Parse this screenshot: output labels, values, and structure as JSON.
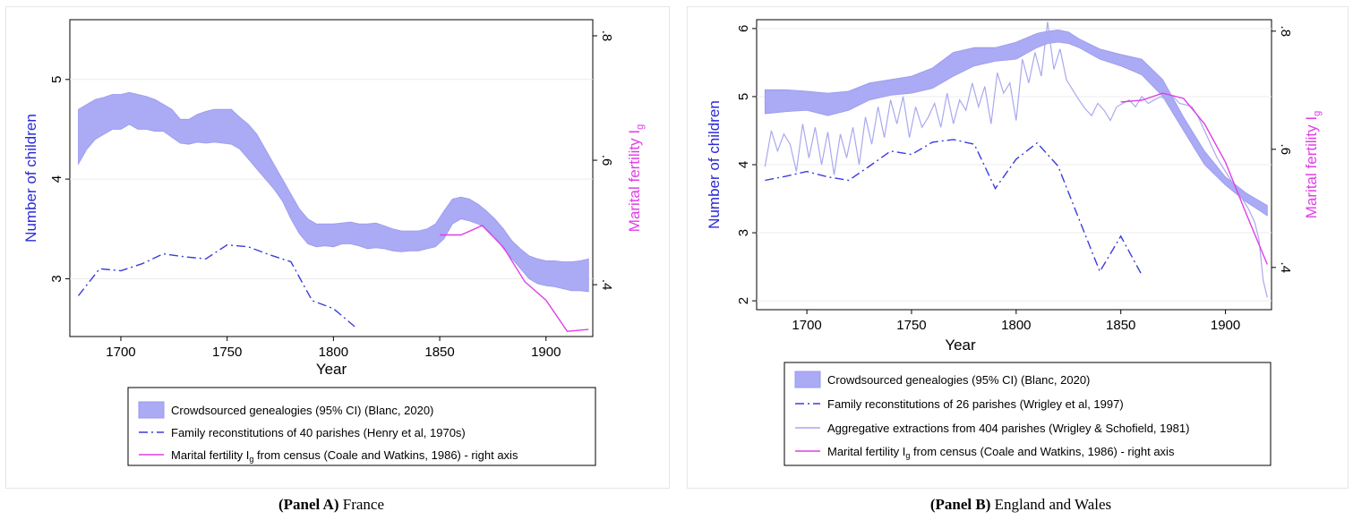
{
  "chart_data": [
    {
      "panel": "A",
      "type": "line",
      "caption_label": "(Panel A)",
      "caption_text": "France",
      "xlabel": "Year",
      "ylabel": "Number of children",
      "ylabel_right": "Marital fertility I",
      "ylabel_right_sub": "g",
      "xlim": [
        1676,
        1922
      ],
      "ylim": [
        2.42,
        5.6
      ],
      "ylim_right": [
        0.3167,
        0.8259
      ],
      "xticks": [
        1700,
        1750,
        1800,
        1850,
        1900
      ],
      "yticks": [
        3,
        4,
        5
      ],
      "yticks_right": [
        ".4",
        ".6",
        ".8"
      ],
      "yticks_right_values": [
        0.4,
        0.6,
        0.8
      ],
      "grid": true,
      "legend_position": "below",
      "colors": {
        "band": "#aaaaf5",
        "band_edge": "#9a9aee",
        "reconstitution": "#3b3be0",
        "census": "#e03ee6",
        "left_axis": "#2a2ad8",
        "right_axis": "#e03ee6"
      },
      "series": [
        {
          "name": "Crowdsourced genealogies (95% CI) (Blanc, 2020)",
          "kind": "band",
          "axis": "left",
          "x": [
            1680,
            1684,
            1688,
            1692,
            1696,
            1700,
            1704,
            1708,
            1712,
            1716,
            1720,
            1724,
            1728,
            1732,
            1736,
            1740,
            1744,
            1748,
            1752,
            1756,
            1760,
            1764,
            1768,
            1772,
            1776,
            1780,
            1784,
            1788,
            1792,
            1796,
            1800,
            1804,
            1808,
            1812,
            1816,
            1820,
            1824,
            1828,
            1832,
            1836,
            1840,
            1844,
            1848,
            1852,
            1856,
            1860,
            1864,
            1868,
            1872,
            1876,
            1880,
            1884,
            1888,
            1892,
            1896,
            1900,
            1904,
            1908,
            1912,
            1916,
            1920
          ],
          "lower": [
            4.15,
            4.3,
            4.4,
            4.45,
            4.5,
            4.5,
            4.55,
            4.5,
            4.5,
            4.48,
            4.48,
            4.42,
            4.36,
            4.35,
            4.37,
            4.36,
            4.37,
            4.36,
            4.35,
            4.3,
            4.2,
            4.1,
            4.0,
            3.9,
            3.78,
            3.6,
            3.45,
            3.35,
            3.32,
            3.33,
            3.32,
            3.35,
            3.35,
            3.33,
            3.3,
            3.31,
            3.3,
            3.28,
            3.27,
            3.28,
            3.28,
            3.3,
            3.32,
            3.4,
            3.55,
            3.6,
            3.58,
            3.55,
            3.5,
            3.42,
            3.3,
            3.2,
            3.1,
            3.0,
            2.95,
            2.93,
            2.92,
            2.9,
            2.88,
            2.88,
            2.87
          ],
          "upper": [
            4.7,
            4.75,
            4.8,
            4.82,
            4.85,
            4.85,
            4.87,
            4.85,
            4.83,
            4.8,
            4.75,
            4.7,
            4.6,
            4.6,
            4.65,
            4.68,
            4.7,
            4.7,
            4.7,
            4.62,
            4.55,
            4.45,
            4.3,
            4.15,
            4.0,
            3.85,
            3.7,
            3.6,
            3.55,
            3.55,
            3.55,
            3.56,
            3.57,
            3.55,
            3.55,
            3.56,
            3.53,
            3.5,
            3.48,
            3.48,
            3.48,
            3.5,
            3.55,
            3.68,
            3.8,
            3.82,
            3.8,
            3.75,
            3.68,
            3.6,
            3.5,
            3.38,
            3.3,
            3.23,
            3.2,
            3.18,
            3.18,
            3.17,
            3.17,
            3.18,
            3.2
          ]
        },
        {
          "name": "Family reconstitutions of 40 parishes (Henry et al, 1970s)",
          "kind": "dashdot",
          "axis": "left",
          "x": [
            1680,
            1690,
            1700,
            1710,
            1720,
            1730,
            1740,
            1750,
            1760,
            1770,
            1780,
            1790,
            1800,
            1810
          ],
          "y": [
            2.83,
            3.1,
            3.08,
            3.15,
            3.25,
            3.22,
            3.2,
            3.34,
            3.32,
            3.24,
            3.17,
            2.78,
            2.7,
            2.52
          ]
        },
        {
          "name": "Marital fertility I",
          "name_sub": "g",
          "name_suffix": " from census (Coale and Watkins, 1986) - right axis",
          "kind": "solid",
          "axis": "right",
          "x": [
            1850,
            1860,
            1870,
            1880,
            1890,
            1900,
            1910,
            1920
          ],
          "y": [
            0.48,
            0.48,
            0.495,
            0.46,
            0.405,
            0.375,
            0.325,
            0.328
          ]
        }
      ]
    },
    {
      "panel": "B",
      "type": "line",
      "caption_label": "(Panel B)",
      "caption_text": "England and Wales",
      "xlabel": "Year",
      "ylabel": "Number of children",
      "ylabel_right": "Marital fertility I",
      "ylabel_right_sub": "g",
      "xlim": [
        1676,
        1922
      ],
      "ylim": [
        1.87,
        6.13
      ],
      "ylim_right": [
        0.3285,
        0.8194
      ],
      "xticks": [
        1700,
        1750,
        1800,
        1850,
        1900
      ],
      "yticks": [
        2,
        3,
        4,
        5,
        6
      ],
      "yticks_right": [
        ".4",
        ".6",
        ".8"
      ],
      "yticks_right_values": [
        0.4,
        0.6,
        0.8
      ],
      "grid": true,
      "legend_position": "below",
      "colors": {
        "band": "#aaaaf5",
        "band_edge": "#9a9aee",
        "reconstitution": "#3b3be0",
        "aggregative": "#a9a9ef",
        "census": "#e03ee6",
        "left_axis": "#2a2ad8",
        "right_axis": "#e03ee6"
      },
      "series": [
        {
          "name": "Crowdsourced genealogies (95% CI) (Blanc, 2020)",
          "kind": "band",
          "axis": "left",
          "x": [
            1680,
            1690,
            1700,
            1710,
            1720,
            1730,
            1740,
            1750,
            1760,
            1770,
            1780,
            1790,
            1800,
            1810,
            1815,
            1820,
            1825,
            1830,
            1840,
            1850,
            1860,
            1870,
            1880,
            1890,
            1900,
            1910,
            1920
          ],
          "lower": [
            4.75,
            4.78,
            4.8,
            4.72,
            4.8,
            4.95,
            5.02,
            5.05,
            5.12,
            5.3,
            5.45,
            5.52,
            5.55,
            5.72,
            5.78,
            5.8,
            5.78,
            5.72,
            5.55,
            5.45,
            5.32,
            5.0,
            4.5,
            4.0,
            3.7,
            3.45,
            3.25
          ],
          "upper": [
            5.1,
            5.1,
            5.08,
            5.05,
            5.08,
            5.2,
            5.25,
            5.3,
            5.42,
            5.65,
            5.72,
            5.72,
            5.8,
            5.93,
            5.96,
            5.98,
            5.95,
            5.85,
            5.7,
            5.62,
            5.55,
            5.25,
            4.7,
            4.2,
            3.82,
            3.58,
            3.4
          ]
        },
        {
          "name": "Family reconstitutions of 26 parishes (Wrigley et al, 1997)",
          "kind": "dashdot",
          "axis": "left",
          "x": [
            1680,
            1690,
            1700,
            1710,
            1720,
            1730,
            1740,
            1750,
            1760,
            1770,
            1780,
            1790,
            1800,
            1810,
            1820,
            1830,
            1840,
            1850,
            1860
          ],
          "y": [
            3.77,
            3.83,
            3.9,
            3.82,
            3.77,
            3.98,
            4.2,
            4.15,
            4.33,
            4.37,
            4.3,
            3.65,
            4.08,
            4.32,
            3.98,
            3.2,
            2.43,
            2.95,
            2.38
          ]
        },
        {
          "name": "Aggregative extractions from 404 parishes (Wrigley & Schofield, 1981)",
          "kind": "solid-light",
          "axis": "left",
          "x": [
            1680,
            1683,
            1686,
            1689,
            1692,
            1695,
            1698,
            1701,
            1704,
            1707,
            1710,
            1713,
            1716,
            1719,
            1722,
            1725,
            1728,
            1731,
            1734,
            1737,
            1740,
            1743,
            1746,
            1749,
            1752,
            1755,
            1758,
            1761,
            1764,
            1767,
            1770,
            1773,
            1776,
            1779,
            1782,
            1785,
            1788,
            1791,
            1794,
            1797,
            1800,
            1803,
            1806,
            1809,
            1812,
            1815,
            1818,
            1821,
            1824,
            1827,
            1830,
            1833,
            1836,
            1839,
            1842,
            1845,
            1848,
            1851,
            1854,
            1857,
            1860,
            1863,
            1866,
            1869,
            1872,
            1875,
            1878,
            1881,
            1884,
            1887,
            1890,
            1893,
            1896,
            1899,
            1902,
            1905,
            1908,
            1911,
            1914,
            1916,
            1918,
            1920
          ],
          "y": [
            3.97,
            4.5,
            4.2,
            4.45,
            4.3,
            3.9,
            4.6,
            4.1,
            4.55,
            4.0,
            4.48,
            3.85,
            4.45,
            4.1,
            4.55,
            4.0,
            4.7,
            4.3,
            4.85,
            4.4,
            4.95,
            4.6,
            5.0,
            4.4,
            4.85,
            4.55,
            4.7,
            4.9,
            4.55,
            5.05,
            4.6,
            4.95,
            4.8,
            5.2,
            4.85,
            5.15,
            4.6,
            5.35,
            5.05,
            5.2,
            4.65,
            5.55,
            5.2,
            5.65,
            5.3,
            6.1,
            5.4,
            5.7,
            5.25,
            5.1,
            4.95,
            4.82,
            4.72,
            4.9,
            4.8,
            4.65,
            4.85,
            4.9,
            4.95,
            4.85,
            5.0,
            4.9,
            4.95,
            5.0,
            4.95,
            5.0,
            4.9,
            4.88,
            4.85,
            4.7,
            4.5,
            4.3,
            4.1,
            3.95,
            3.8,
            3.65,
            3.5,
            3.35,
            3.15,
            2.9,
            2.3,
            2.05
          ]
        },
        {
          "name": "Marital fertility I",
          "name_sub": "g",
          "name_suffix": " from census (Coale and Watkins, 1986) - right axis",
          "kind": "solid",
          "axis": "right",
          "x": [
            1850,
            1860,
            1870,
            1880,
            1890,
            1900,
            1910,
            1920
          ],
          "y": [
            0.68,
            0.683,
            0.695,
            0.686,
            0.643,
            0.578,
            0.49,
            0.405
          ]
        }
      ]
    }
  ]
}
